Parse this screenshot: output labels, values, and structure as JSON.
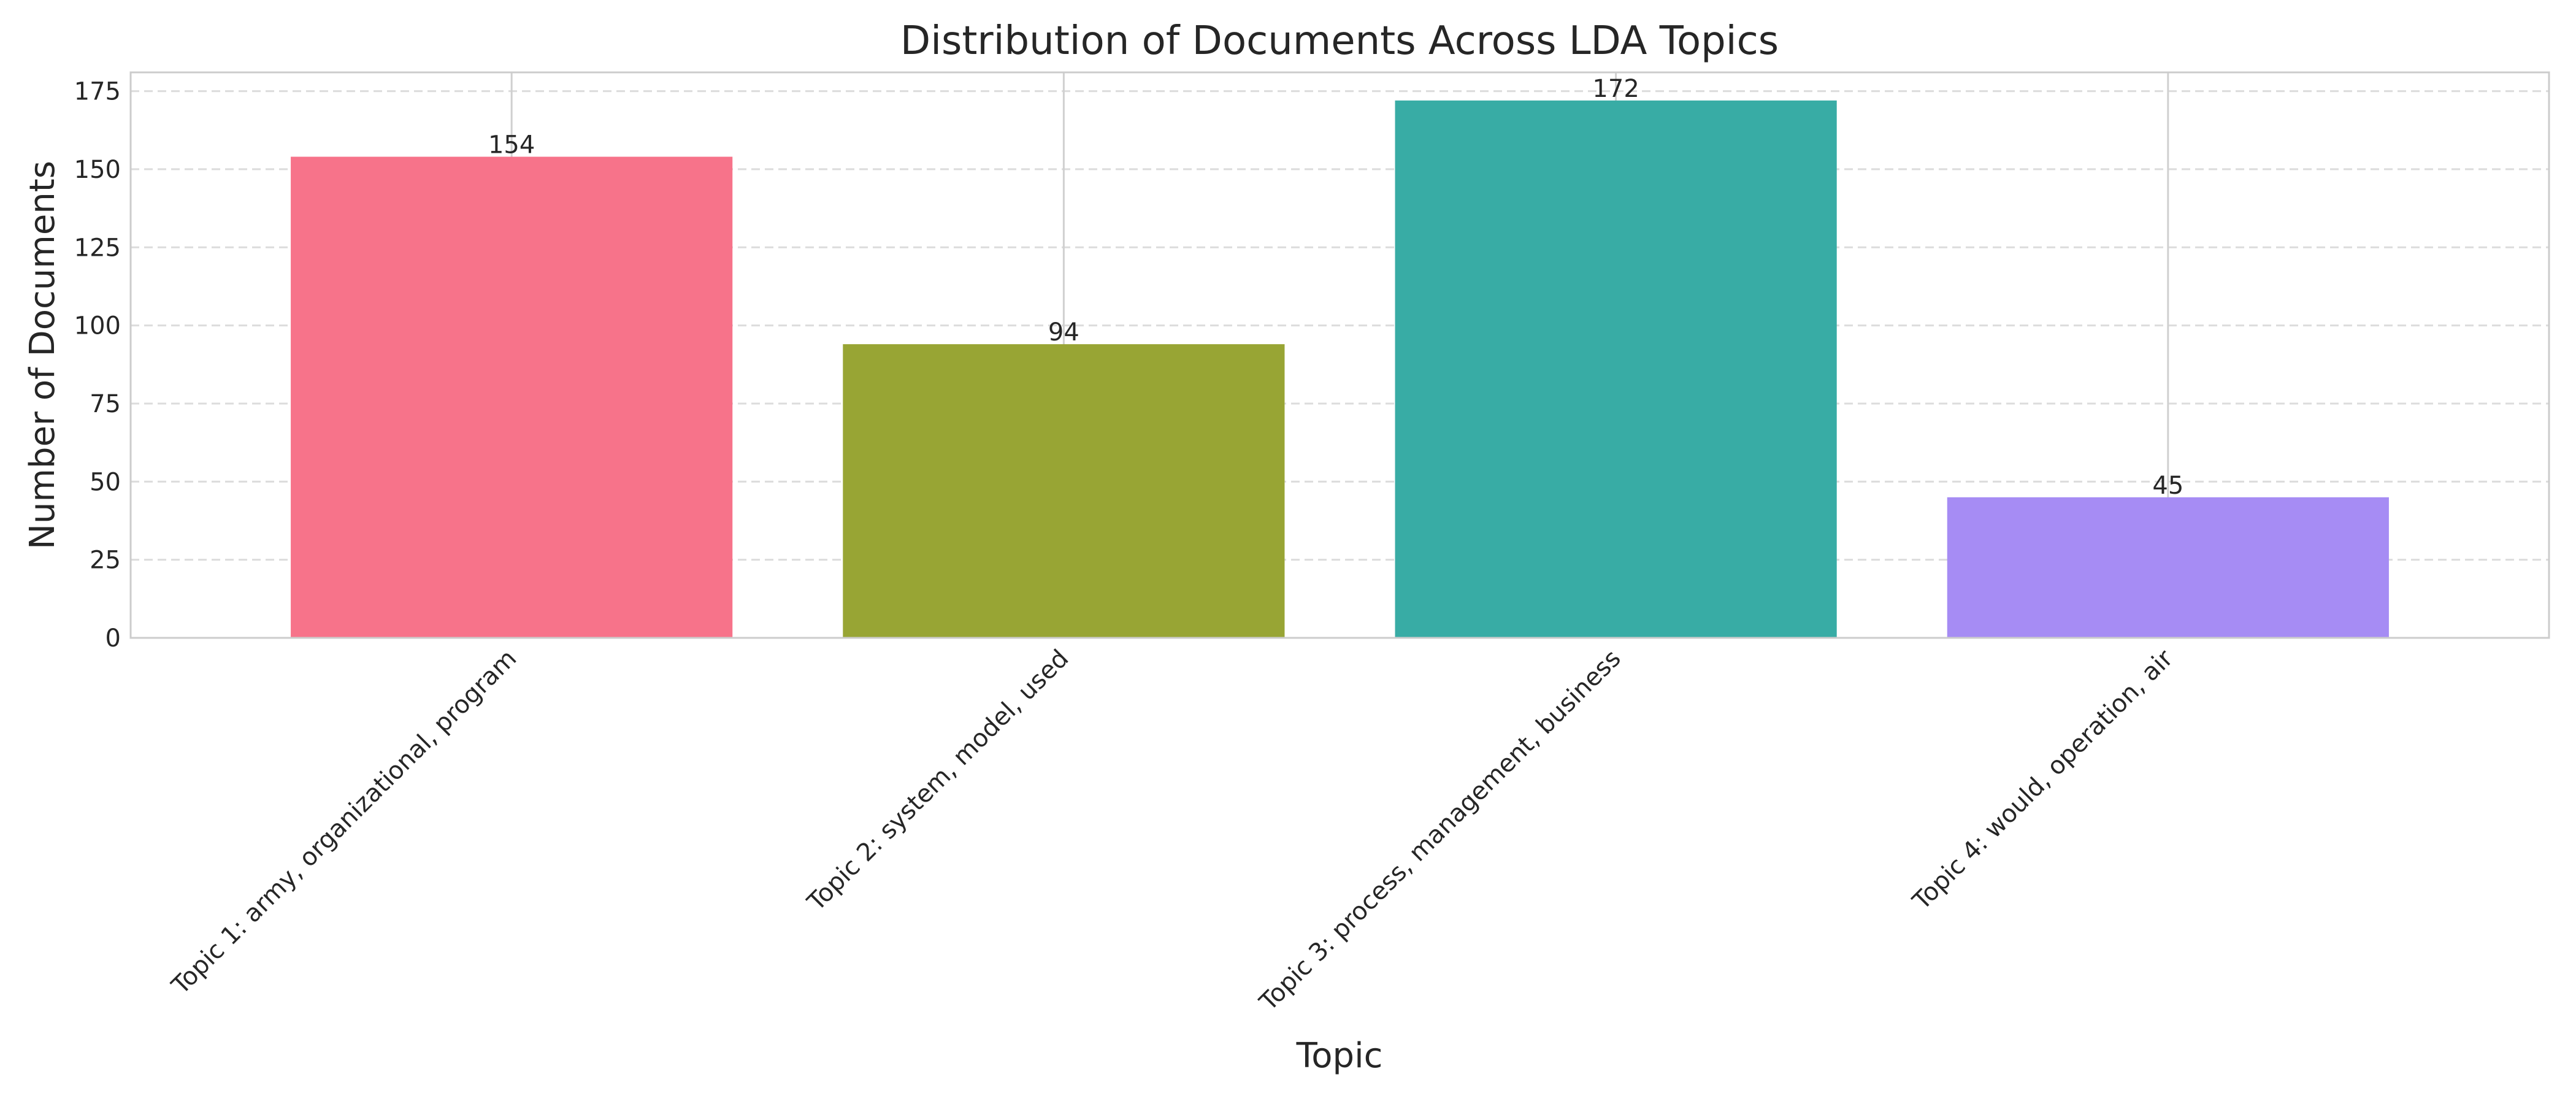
{
  "chart_data": {
    "type": "bar",
    "title": "Distribution of Documents Across LDA Topics",
    "xlabel": "Topic",
    "ylabel": "Number of Documents",
    "categories": [
      "Topic 1: army, organizational, program",
      "Topic 2: system, model, used",
      "Topic 3: process, management, business",
      "Topic 4: would, operation, air"
    ],
    "values": [
      154,
      94,
      172,
      45
    ],
    "data_labels": [
      "154",
      "94",
      "172",
      "45"
    ],
    "colors": [
      "#f7738a",
      "#98a534",
      "#38aca5",
      "#a68cf4"
    ],
    "ylim": [
      0,
      181
    ],
    "yticks": [
      0,
      25,
      50,
      75,
      100,
      125,
      150,
      175
    ],
    "ytick_labels": [
      "0",
      "25",
      "50",
      "75",
      "100",
      "125",
      "150",
      "175"
    ],
    "grid": "y-dashed",
    "legend": "none"
  }
}
